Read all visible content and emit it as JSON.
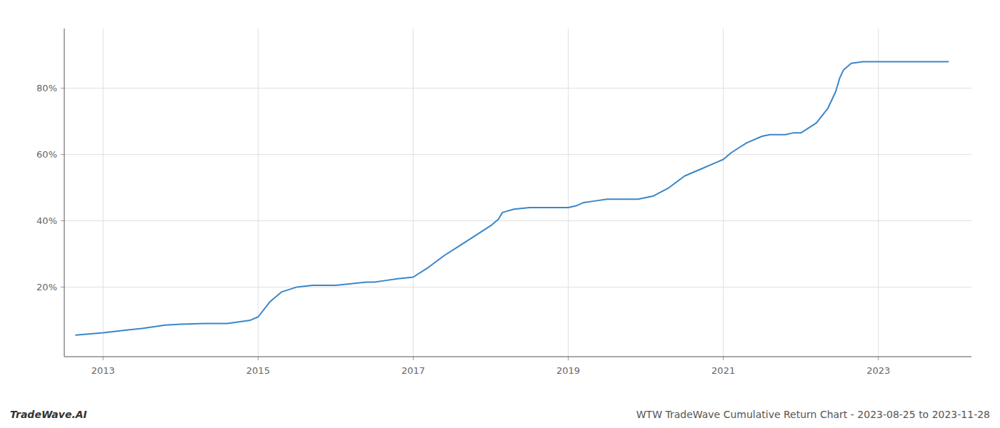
{
  "chart_data": {
    "type": "line",
    "title": "WTW TradeWave Cumulative Return Chart - 2023-08-25 to 2023-11-28",
    "annotations": [
      "TradeWave.AI"
    ],
    "color": "#3a86c8",
    "grid": true,
    "xlim": [
      2012.5,
      2024.2
    ],
    "ylim": [
      -0.01,
      0.98
    ],
    "xticks": [
      2013,
      2015,
      2017,
      2019,
      2021,
      2023
    ],
    "yticks": [
      {
        "value": 0.2,
        "label": "20%"
      },
      {
        "value": 0.4,
        "label": "40%"
      },
      {
        "value": 0.6,
        "label": "60%"
      },
      {
        "value": 0.8,
        "label": "80%"
      }
    ],
    "x": [
      2012.65,
      2013.0,
      2013.3,
      2013.5,
      2013.8,
      2014.0,
      2014.3,
      2014.6,
      2014.9,
      2015.0,
      2015.15,
      2015.3,
      2015.5,
      2015.7,
      2015.9,
      2016.0,
      2016.2,
      2016.4,
      2016.5,
      2016.65,
      2016.8,
      2017.0,
      2017.2,
      2017.4,
      2017.6,
      2017.8,
      2018.0,
      2018.1,
      2018.15,
      2018.3,
      2018.5,
      2018.7,
      2018.9,
      2019.0,
      2019.1,
      2019.2,
      2019.35,
      2019.5,
      2019.7,
      2019.9,
      2020.1,
      2020.3,
      2020.5,
      2020.7,
      2020.9,
      2021.0,
      2021.1,
      2021.2,
      2021.3,
      2021.5,
      2021.6,
      2021.7,
      2021.8,
      2021.9,
      2022.0,
      2022.2,
      2022.35,
      2022.45,
      2022.5,
      2022.55,
      2022.65,
      2022.8,
      2023.0,
      2023.5,
      2023.9
    ],
    "values": [
      0.055,
      0.062,
      0.07,
      0.075,
      0.085,
      0.088,
      0.09,
      0.09,
      0.1,
      0.11,
      0.155,
      0.185,
      0.2,
      0.205,
      0.205,
      0.205,
      0.21,
      0.215,
      0.215,
      0.22,
      0.225,
      0.23,
      0.26,
      0.295,
      0.325,
      0.355,
      0.385,
      0.405,
      0.425,
      0.435,
      0.44,
      0.44,
      0.44,
      0.44,
      0.445,
      0.455,
      0.46,
      0.465,
      0.465,
      0.465,
      0.475,
      0.5,
      0.535,
      0.555,
      0.575,
      0.585,
      0.605,
      0.62,
      0.635,
      0.655,
      0.66,
      0.66,
      0.66,
      0.665,
      0.665,
      0.695,
      0.74,
      0.79,
      0.83,
      0.855,
      0.875,
      0.88,
      0.88,
      0.88,
      0.88
    ]
  }
}
